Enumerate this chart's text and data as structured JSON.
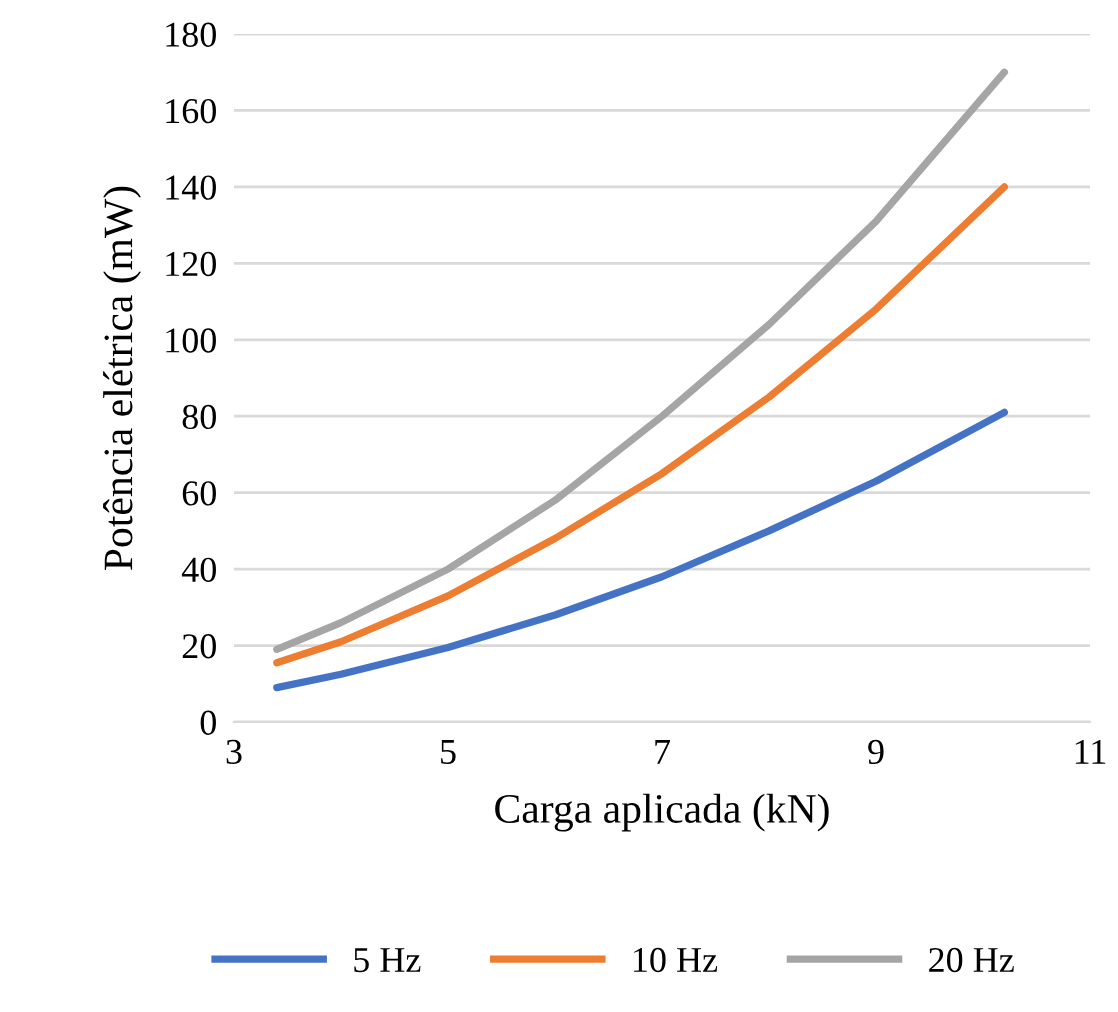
{
  "chart_data": {
    "type": "line",
    "xlabel": "Carga aplicada (kN)",
    "ylabel": "Potência elétrica (mW)",
    "x": [
      3.4,
      4,
      5,
      6,
      7,
      8,
      9,
      10.2
    ],
    "series": [
      {
        "name": "5 Hz",
        "color": "#4472c4",
        "values": [
          9,
          12.5,
          19.5,
          28,
          38,
          50,
          63,
          81
        ]
      },
      {
        "name": "10 Hz",
        "color": "#ed7d31",
        "values": [
          15.5,
          21,
          33,
          48,
          65,
          85,
          108,
          140
        ]
      },
      {
        "name": "20 Hz",
        "color": "#a5a5a5",
        "values": [
          19,
          26,
          40,
          58,
          80,
          104,
          131,
          170
        ]
      }
    ],
    "xlim": [
      3,
      11
    ],
    "xticks": [
      3,
      5,
      7,
      9,
      11
    ],
    "ylim": [
      0,
      180
    ],
    "yticks": [
      0,
      20,
      40,
      60,
      80,
      100,
      120,
      140,
      160,
      180
    ],
    "grid": "y",
    "legend": "bottom",
    "marker": "none",
    "line_style": "solid"
  }
}
